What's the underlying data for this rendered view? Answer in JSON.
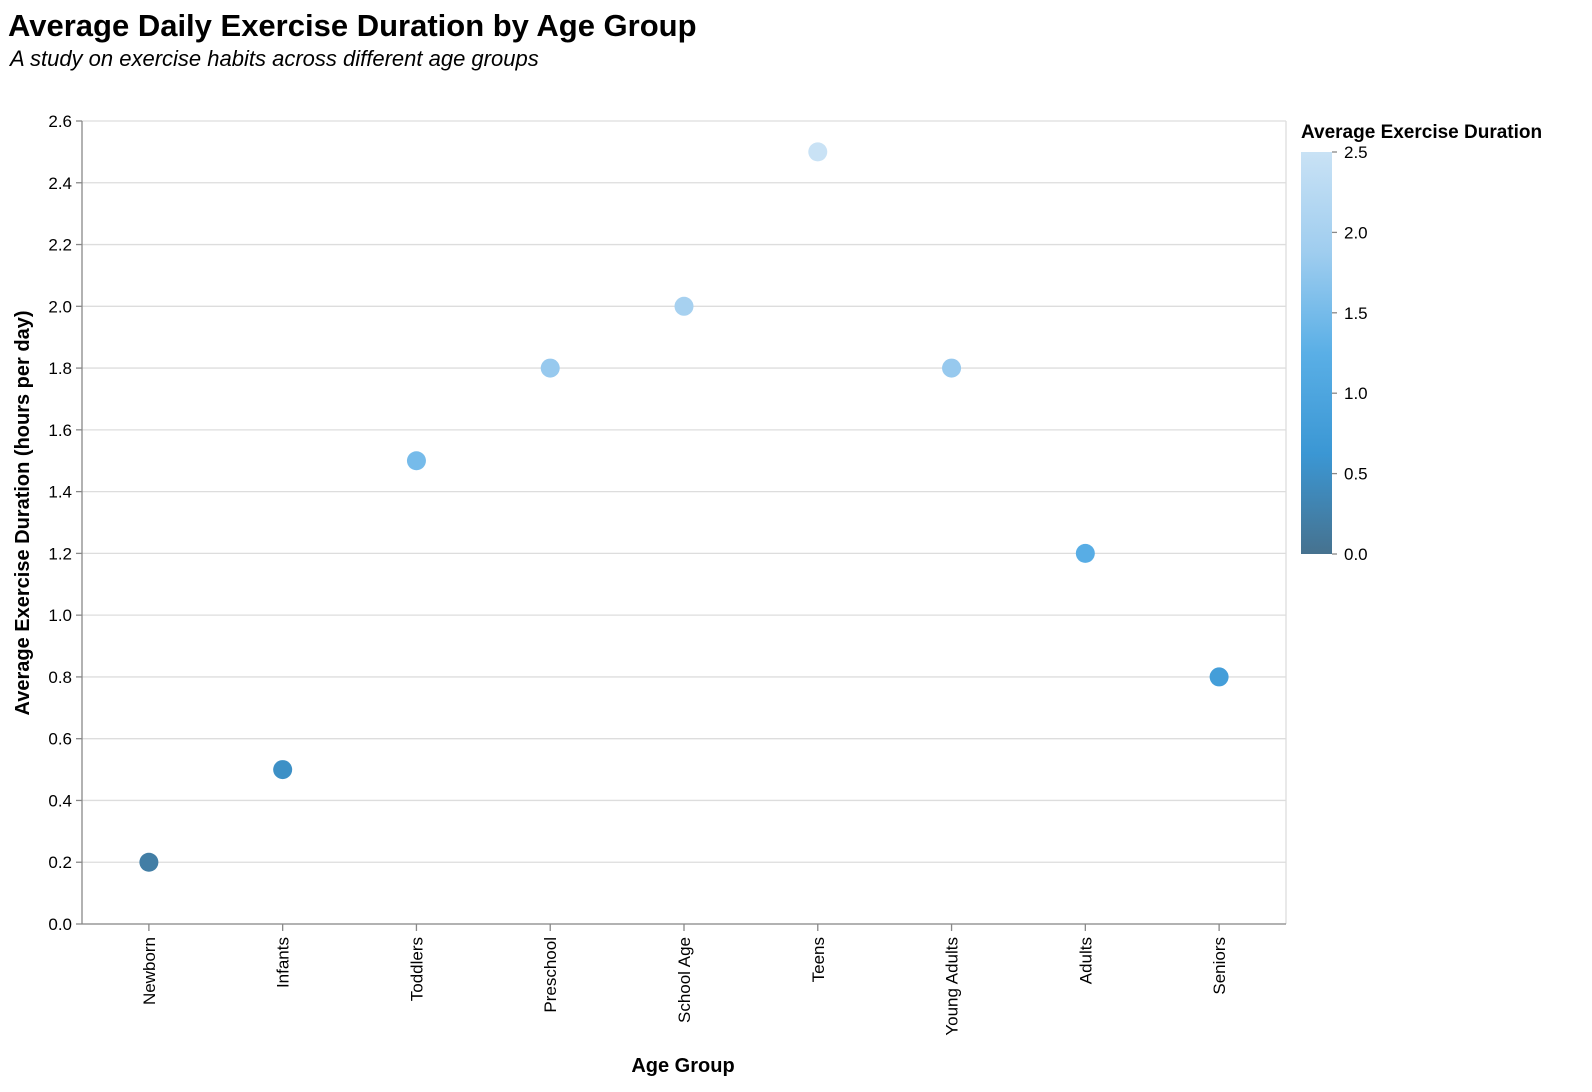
{
  "chart_data": {
    "type": "scatter",
    "title": "Average Daily Exercise Duration by Age Group",
    "subtitle": "A study on exercise habits across different age groups",
    "xlabel": "Age Group",
    "ylabel": "Average Exercise Duration (hours per day)",
    "categories": [
      "Newborn",
      "Infants",
      "Toddlers",
      "Preschool",
      "School Age",
      "Teens",
      "Young Adults",
      "Adults",
      "Seniors"
    ],
    "values": [
      0.2,
      0.5,
      1.5,
      1.8,
      2.0,
      2.5,
      1.8,
      1.2,
      0.8
    ],
    "ylim": [
      0,
      2.6
    ],
    "yticks": [
      0.0,
      0.2,
      0.4,
      0.6,
      0.8,
      1.0,
      1.2,
      1.4,
      1.6,
      1.8,
      2.0,
      2.2,
      2.4,
      2.6
    ],
    "grid": true,
    "legend": {
      "title": "Average Exercise Duration",
      "placement": "top-right",
      "type": "gradient",
      "domain": [
        0,
        2.5
      ],
      "ticks": [
        0.0,
        0.5,
        1.0,
        1.5,
        2.0,
        2.5
      ],
      "colors": [
        "#46728f",
        "#3b97d4",
        "#5aafe6",
        "#9fcdef",
        "#c9e2f5"
      ]
    }
  }
}
